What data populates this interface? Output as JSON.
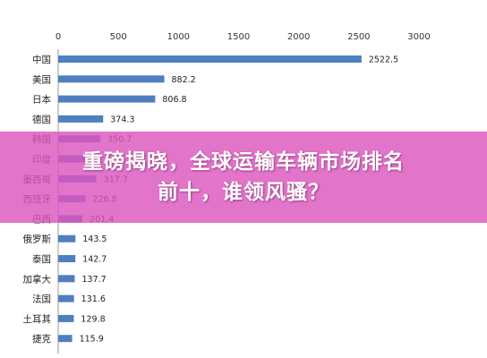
{
  "chart_data": {
    "type": "bar",
    "orientation": "horizontal",
    "categories": [
      "中国",
      "美国",
      "日本",
      "德国",
      "韩国",
      "印度",
      "墨西哥",
      "西班牙",
      "巴西",
      "俄罗斯",
      "泰国",
      "加拿大",
      "法国",
      "土耳其",
      "捷克"
    ],
    "values": [
      2522.5,
      882.2,
      806.8,
      374.3,
      350.7,
      320,
      317.7,
      226.8,
      201.4,
      143.5,
      142.7,
      137.7,
      131.6,
      129.8,
      115.9
    ],
    "value_labels": [
      "2522.5",
      "882.2",
      "806.8",
      "374.3",
      "350.7",
      "",
      "317.7",
      "226.8",
      "201.4",
      "143.5",
      "142.7",
      "137.7",
      "131.6",
      "129.8",
      "115.9"
    ],
    "x_ticks": [
      "0",
      "500",
      "1000",
      "1500",
      "2000",
      "2500",
      "3000"
    ],
    "xlim": [
      0,
      3000
    ],
    "axis_position": "top",
    "grid": false,
    "legend": "none",
    "bar_color": "#4f7fbf"
  },
  "overlay": {
    "line1": "重磅揭晓，全球运输车辆市场排名",
    "line2": "前十，谁领风骚？"
  }
}
